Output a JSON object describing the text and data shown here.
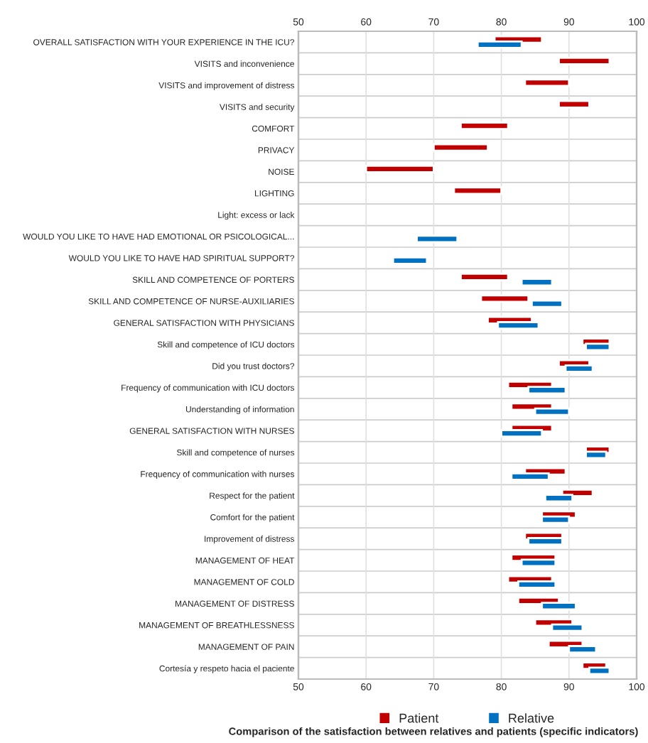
{
  "chart_data": {
    "type": "bar",
    "orientation": "horizontal",
    "title": "Comparison of the satisfaction between relatives and patients (specific indicators)",
    "categories": [
      "OVERALL SATISFACTION WITH YOUR EXPERIENCE IN THE ICU?",
      "VISITS and inconvenience",
      "VISITS and improvement of distress",
      "VISITS and security",
      "COMFORT",
      "PRIVACY",
      "NOISE",
      "LIGHTING",
      "Light: excess or lack",
      "WOULD YOU LIKE TO HAVE HAD EMOTIONAL OR PSICOLOGICAL...",
      "WOULD YOU LIKE TO HAVE HAD SPIRITUAL SUPPORT?",
      "SKILL AND COMPETENCE OF PORTERS",
      "SKILL AND COMPETENCE OF NURSE-AUXILIARIES",
      "GENERAL SATISFACTION WITH PHYSICIANS",
      "Skill and competence of ICU doctors",
      "Did you trust doctors?",
      "Frequency of communication with ICU doctors",
      "Understanding of information",
      "GENERAL SATISFACTION WITH NURSES",
      "Skill and competence of nurses",
      "Frequency of communication with nurses",
      "Respect for the patient",
      "Comfort for the patient",
      "Improvement of distress",
      "MANAGEMENT OF HEAT",
      "MANAGEMENT OF COLD",
      "MANAGEMENT OF DISTRESS",
      "MANAGEMENT OF BREATHLESSNESS",
      "MANAGEMENT OF PAIN",
      "Cortesía y respeto hacia el paciente"
    ],
    "series": [
      {
        "name": "Patient",
        "color": "#c00000",
        "base": [
          79,
          88.5,
          83.5,
          88.5,
          74,
          70,
          60,
          73,
          null,
          null,
          null,
          74,
          77,
          78,
          92,
          88.5,
          81,
          81.5,
          81.5,
          92.5,
          83.5,
          89,
          86,
          83.5,
          81.5,
          81,
          82.5,
          85,
          87,
          92
        ],
        "values": [
          7,
          7.5,
          6.5,
          4.5,
          7,
          8,
          10,
          7,
          null,
          null,
          null,
          7,
          7,
          6.5,
          4,
          4.5,
          6.5,
          6,
          6,
          3.5,
          6,
          4.5,
          5,
          5.5,
          6.5,
          6.5,
          6,
          5.5,
          5,
          3.5
        ]
      },
      {
        "name": "Relative",
        "color": "#0070c0",
        "base": [
          76.5,
          null,
          null,
          null,
          null,
          null,
          null,
          null,
          null,
          67.5,
          64,
          83,
          84.5,
          79.5,
          92.5,
          89.5,
          84,
          85,
          80,
          92.5,
          81.5,
          86.5,
          86,
          84,
          83,
          82.5,
          86,
          87.5,
          90,
          93
        ],
        "values": [
          6.5,
          null,
          null,
          null,
          null,
          null,
          null,
          null,
          null,
          6,
          5,
          4.5,
          4.5,
          6,
          3.5,
          4,
          5.5,
          5,
          6,
          3,
          5.5,
          4,
          4,
          5,
          5,
          5.5,
          5,
          4.5,
          4,
          3
        ]
      }
    ],
    "xlim": [
      50,
      100
    ],
    "xticks": [
      50,
      60,
      70,
      80,
      90,
      100
    ],
    "x2lim": [
      50,
      100
    ],
    "x2ticks": [
      50,
      60,
      70,
      80,
      90,
      100
    ],
    "grid": "x",
    "legend": "bottom"
  }
}
